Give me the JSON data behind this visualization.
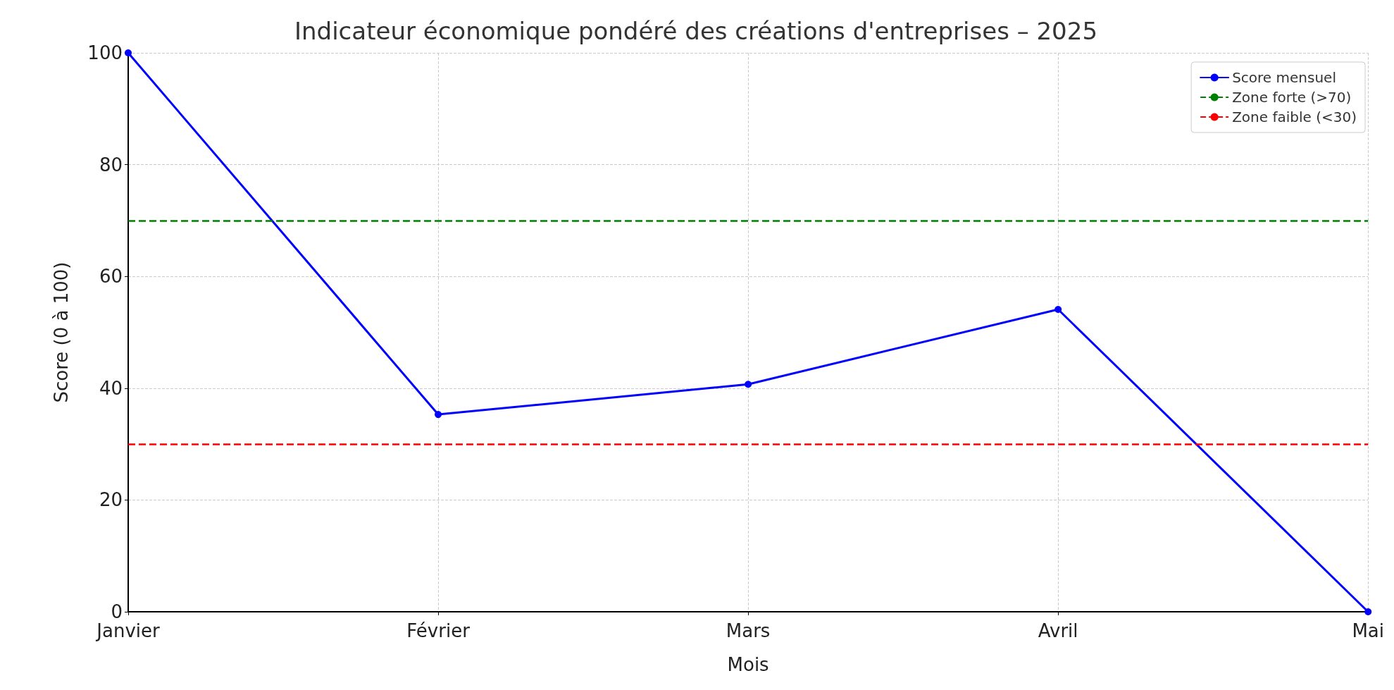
{
  "chart_data": {
    "type": "line",
    "title": "Indicateur économique pondéré des créations d'entreprises – 2025",
    "xlabel": "Mois",
    "ylabel": "Score (0 à 100)",
    "categories": [
      "Janvier",
      "Février",
      "Mars",
      "Avril",
      "Mai"
    ],
    "series": [
      {
        "name": "Score mensuel",
        "color": "#0000ff",
        "values": [
          100,
          35.3,
          40.7,
          54.1,
          0
        ]
      }
    ],
    "ylim": [
      0,
      100
    ],
    "yticks": [
      0,
      20,
      40,
      60,
      80,
      100
    ],
    "grid": true,
    "legend": "top right",
    "marker": "circle",
    "line_style": "solid",
    "ref_lines": [
      {
        "axis": "y",
        "value": 70,
        "label": "Zone forte (>70)",
        "color": "#008000",
        "line_style": "dashed"
      },
      {
        "axis": "y",
        "value": 30,
        "label": "Zone faible (<30)",
        "color": "#ff0000",
        "line_style": "dashed"
      }
    ]
  }
}
